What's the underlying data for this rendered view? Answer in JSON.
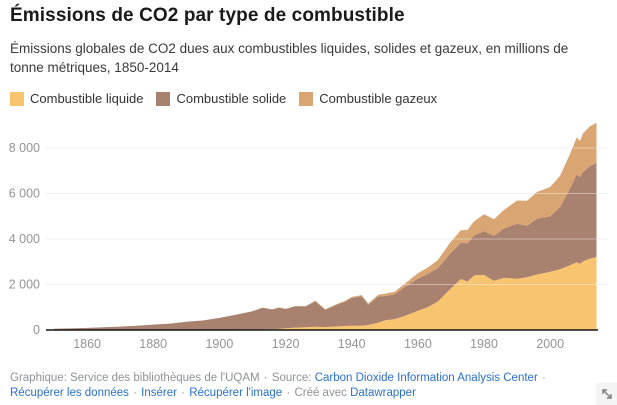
{
  "chart_data": {
    "type": "area",
    "stacked": true,
    "title": "Émissions de CO2 par type de combustible",
    "subtitle": "Émissions globales de CO2 dues aux combustibles liquides, solides et gazeux, en millions de tonne métriques, 1850-2014",
    "x": [
      1850,
      1855,
      1860,
      1865,
      1870,
      1875,
      1880,
      1885,
      1890,
      1895,
      1900,
      1905,
      1910,
      1913,
      1916,
      1918,
      1920,
      1923,
      1926,
      1929,
      1932,
      1935,
      1938,
      1940,
      1943,
      1945,
      1948,
      1950,
      1953,
      1956,
      1960,
      1963,
      1966,
      1970,
      1973,
      1975,
      1977,
      1980,
      1983,
      1986,
      1990,
      1993,
      1996,
      2000,
      2003,
      2006,
      2008,
      2009,
      2010,
      2012,
      2014
    ],
    "series": [
      {
        "name": "Combustible liquide",
        "color": "#F8C470",
        "values": [
          0,
          0,
          0,
          1,
          1,
          2,
          3,
          4,
          5,
          7,
          16,
          23,
          28,
          34,
          39,
          49,
          78,
          104,
          120,
          143,
          128,
          152,
          178,
          191,
          190,
          222,
          322,
          423,
          479,
          615,
          849,
          1006,
          1249,
          1839,
          2240,
          2131,
          2400,
          2422,
          2166,
          2290,
          2254,
          2320,
          2441,
          2558,
          2673,
          2850,
          2980,
          2910,
          3030,
          3140,
          3210
        ]
      },
      {
        "name": "Combustible solide",
        "color": "#A8816F",
        "values": [
          54,
          69,
          91,
          118,
          147,
          188,
          236,
          277,
          356,
          411,
          515,
          643,
          793,
          943,
          860,
          936,
          846,
          940,
          912,
          1122,
          757,
          932,
          1068,
          1221,
          1294,
          882,
          1155,
          1070,
          1088,
          1273,
          1410,
          1450,
          1461,
          1556,
          1587,
          1686,
          1753,
          1925,
          1972,
          2173,
          2414,
          2263,
          2447,
          2440,
          2730,
          3360,
          3850,
          3810,
          3930,
          4060,
          4130
        ]
      },
      {
        "name": "Combustible gazeux",
        "color": "#D8A573",
        "values": [
          0,
          0,
          0,
          0,
          0,
          0,
          0,
          1,
          1,
          2,
          3,
          5,
          7,
          8,
          9,
          9,
          9,
          14,
          16,
          28,
          24,
          30,
          37,
          42,
          50,
          60,
          76,
          97,
          110,
          140,
          235,
          290,
          360,
          493,
          561,
          583,
          620,
          740,
          730,
          810,
          1023,
          1100,
          1180,
          1289,
          1380,
          1525,
          1630,
          1590,
          1700,
          1750,
          1770
        ]
      }
    ],
    "yticks": {
      "values": [
        0,
        2000,
        4000,
        6000,
        8000
      ],
      "labels": [
        "0",
        "2 000",
        "4 000",
        "6 000",
        "8 000"
      ]
    },
    "xticks": {
      "values": [
        1860,
        1880,
        1900,
        1920,
        1940,
        1960,
        1980,
        2000
      ],
      "labels": [
        "1860",
        "1880",
        "1900",
        "1920",
        "1940",
        "1960",
        "1980",
        "2000"
      ]
    },
    "xlim": [
      1850,
      2014
    ],
    "ylim": [
      0,
      9500
    ],
    "grid": true,
    "legend_position": "top"
  },
  "footer": {
    "parts": [
      {
        "type": "text",
        "text": "Graphique: Service des bibliothèques de l'UQAM"
      },
      {
        "type": "sep",
        "text": "·"
      },
      {
        "type": "text",
        "text": "Source:"
      },
      {
        "type": "link",
        "text": "Carbon Dioxide Information Analysis Center"
      },
      {
        "type": "sep",
        "text": "·"
      },
      {
        "type": "link",
        "text": "Récupérer les données"
      },
      {
        "type": "sep",
        "text": "·"
      },
      {
        "type": "link",
        "text": "Insérer"
      },
      {
        "type": "sep",
        "text": "·"
      },
      {
        "type": "link",
        "text": "Récupérer l'image"
      },
      {
        "type": "sep",
        "text": "·"
      },
      {
        "type": "text",
        "text": "Créé avec"
      },
      {
        "type": "link",
        "text": "Datawrapper"
      }
    ]
  },
  "colors": {
    "link_blue": "#2b70c9",
    "axis_text": "#949494",
    "gridline": "#e4e4e4",
    "baseline": "#161616"
  }
}
